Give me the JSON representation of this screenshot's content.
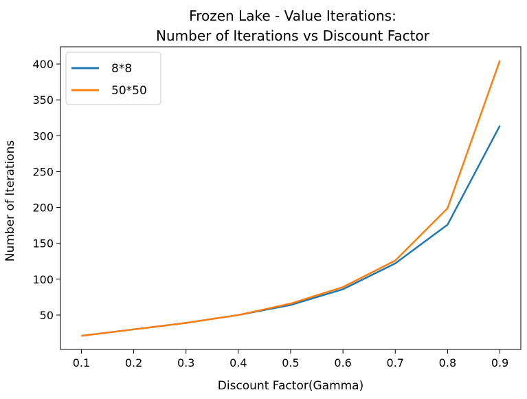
{
  "chart_data": {
    "type": "line",
    "title_lines": [
      "Frozen Lake - Value Iterations:",
      "Number of Iterations vs Discount Factor"
    ],
    "xlabel": "Discount Factor(Gamma)",
    "ylabel": "Number of Iterations",
    "x": [
      0.1,
      0.2,
      0.3,
      0.4,
      0.5,
      0.6,
      0.7,
      0.8,
      0.9
    ],
    "x_ticks": [
      "0.1",
      "0.2",
      "0.3",
      "0.4",
      "0.5",
      "0.6",
      "0.7",
      "0.8",
      "0.9"
    ],
    "y_ticks": [
      "50",
      "100",
      "150",
      "200",
      "250",
      "300",
      "350",
      "400"
    ],
    "xlim": [
      0.06,
      0.94
    ],
    "ylim": [
      2,
      424
    ],
    "grid": false,
    "legend": "top-left",
    "series": [
      {
        "name": "8*8",
        "color": "#1f77b4",
        "values": [
          21,
          30,
          39,
          50,
          64,
          86,
          122,
          176,
          314
        ]
      },
      {
        "name": "50*50",
        "color": "#ff7f0e",
        "values": [
          21,
          30,
          39,
          50,
          66,
          89,
          126,
          199,
          405
        ]
      }
    ]
  }
}
